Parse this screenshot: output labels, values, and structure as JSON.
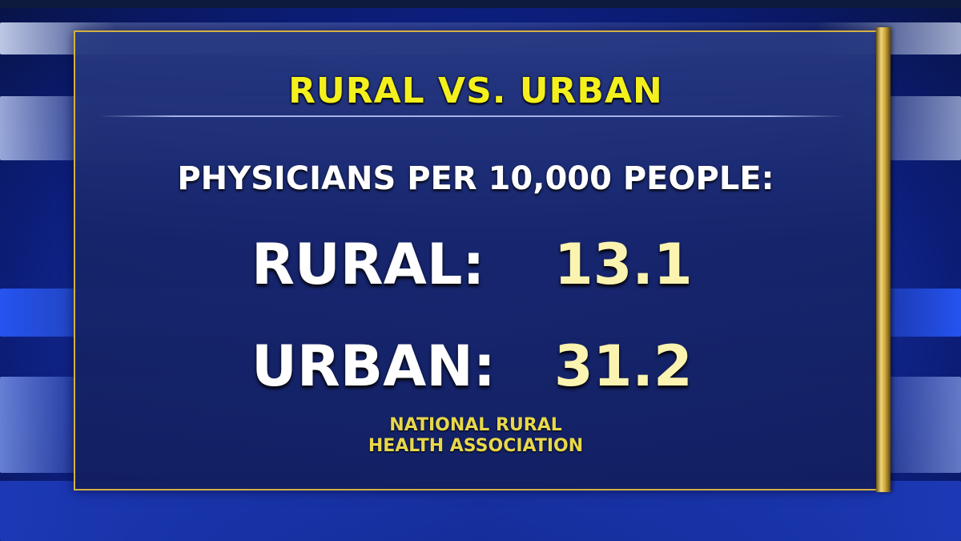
{
  "graphic": {
    "headline": "RURAL VS. URBAN",
    "subhead": "PHYSICIANS PER 10,000 PEOPLE:",
    "stats": [
      {
        "label": "RURAL:",
        "value": "13.1"
      },
      {
        "label": "URBAN:",
        "value": "31.2"
      }
    ],
    "source_lines": [
      "NATIONAL RURAL",
      "HEALTH ASSOCIATION"
    ]
  },
  "colors": {
    "headline": "#f4f01e",
    "value": "#fbf3b0",
    "source": "#e8d84a",
    "frame": "#d4b043",
    "background": "#1a36b0"
  }
}
